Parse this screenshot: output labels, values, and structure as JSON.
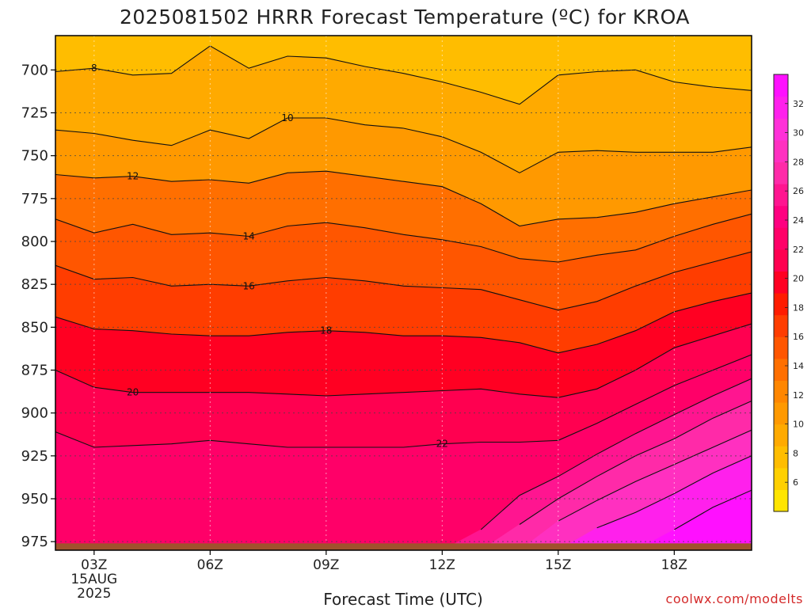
{
  "chart_data": {
    "type": "heatmap",
    "title": "2025081502 HRRR Forecast Temperature (ºC) for KROA",
    "xlabel": "Forecast Time (UTC)",
    "ylabel": "",
    "credit": "coolwx.com/modelts",
    "x_tick_labels": [
      "03Z",
      "06Z",
      "09Z",
      "12Z",
      "15Z",
      "18Z"
    ],
    "x_tick_hours": [
      3,
      6,
      9,
      12,
      15,
      18
    ],
    "date_label": {
      "line1": "15AUG",
      "line2": "2025"
    },
    "xlim_hours": [
      2,
      20
    ],
    "y_tick_labels": [
      "700",
      "725",
      "750",
      "775",
      "800",
      "825",
      "850",
      "875",
      "900",
      "925",
      "950",
      "975"
    ],
    "y_ticks": [
      700,
      725,
      750,
      775,
      800,
      825,
      850,
      875,
      900,
      925,
      950,
      975
    ],
    "ylim": [
      680,
      980
    ],
    "grid": true,
    "colorbar": {
      "ticks": [
        6,
        8,
        10,
        12,
        14,
        16,
        18,
        20,
        22,
        24,
        26,
        28,
        30,
        32
      ],
      "bounds": [
        4,
        34
      ],
      "colors": [
        "#ffe500",
        "#ffd000",
        "#ffbd00",
        "#ffaa00",
        "#ff9900",
        "#ff8600",
        "#ff6f00",
        "#ff5600",
        "#ff3d00",
        "#ff1c00",
        "#ff0022",
        "#ff0050",
        "#ff0068",
        "#ff0080",
        "#ff1590",
        "#ff2aa8",
        "#ff30c0",
        "#ff30d8",
        "#ff20ec",
        "#ff10ff"
      ]
    },
    "hours": [
      2,
      3,
      4,
      5,
      6,
      7,
      8,
      9,
      10,
      11,
      12,
      13,
      14,
      15,
      16,
      17,
      18,
      19,
      20
    ],
    "contours": [
      {
        "level": 8,
        "label": "8",
        "label_at_hour": 3,
        "pressures": [
          701,
          699,
          703,
          702,
          686,
          699,
          692,
          693,
          698,
          702,
          707,
          713,
          720,
          703,
          701,
          700,
          707,
          710,
          712
        ]
      },
      {
        "level": 10,
        "label": "10",
        "label_at_hour": 8,
        "pressures": [
          735,
          737,
          741,
          744,
          735,
          740,
          728,
          728,
          732,
          734,
          739,
          748,
          760,
          748,
          747,
          748,
          748,
          748,
          745
        ]
      },
      {
        "level": 12,
        "label": "12",
        "label_at_hour": 4,
        "pressures": [
          761,
          763,
          762,
          765,
          764,
          766,
          760,
          759,
          762,
          765,
          768,
          778,
          791,
          787,
          786,
          783,
          778,
          774,
          770
        ]
      },
      {
        "level": 14,
        "label": "14",
        "label_at_hour": 7,
        "pressures": [
          787,
          795,
          790,
          796,
          795,
          797,
          791,
          789,
          792,
          796,
          799,
          803,
          810,
          812,
          808,
          805,
          797,
          790,
          784
        ]
      },
      {
        "level": 16,
        "label": "16",
        "label_at_hour": 7,
        "pressures": [
          814,
          822,
          821,
          826,
          825,
          826,
          823,
          821,
          823,
          826,
          827,
          828,
          834,
          840,
          835,
          826,
          818,
          812,
          806
        ]
      },
      {
        "level": 18,
        "label": "18",
        "label_at_hour": 9,
        "pressures": [
          844,
          851,
          852,
          854,
          855,
          855,
          853,
          852,
          853,
          855,
          855,
          856,
          859,
          865,
          860,
          852,
          841,
          835,
          830
        ]
      },
      {
        "level": 20,
        "label": "20",
        "label_at_hour": 4,
        "pressures": [
          875,
          885,
          888,
          888,
          888,
          888,
          889,
          890,
          889,
          888,
          887,
          886,
          889,
          891,
          886,
          875,
          862,
          855,
          848
        ]
      },
      {
        "level": 22,
        "label": "22",
        "label_at_hour": 12,
        "pressures": [
          911,
          920,
          919,
          918,
          916,
          918,
          920,
          920,
          920,
          920,
          918,
          917,
          917,
          916,
          906,
          895,
          884,
          875,
          866
        ]
      },
      {
        "level": 24,
        "label": "",
        "label_at_hour": -1,
        "pressures": [
          null,
          null,
          null,
          null,
          null,
          null,
          null,
          null,
          null,
          null,
          null,
          968,
          948,
          937,
          924,
          912,
          901,
          890,
          880
        ]
      },
      {
        "level": 26,
        "label": "",
        "label_at_hour": -1,
        "pressures": [
          null,
          null,
          null,
          null,
          null,
          null,
          null,
          null,
          null,
          null,
          null,
          null,
          965,
          950,
          937,
          925,
          915,
          903,
          893
        ]
      },
      {
        "level": 28,
        "label": "",
        "label_at_hour": -1,
        "pressures": [
          null,
          null,
          null,
          null,
          null,
          null,
          null,
          null,
          null,
          null,
          null,
          null,
          null,
          963,
          951,
          940,
          930,
          920,
          910
        ]
      },
      {
        "level": 30,
        "label": "",
        "label_at_hour": -1,
        "pressures": [
          null,
          null,
          null,
          null,
          null,
          null,
          null,
          null,
          null,
          null,
          null,
          null,
          null,
          null,
          967,
          958,
          947,
          935,
          925
        ]
      },
      {
        "level": 32,
        "label": "",
        "label_at_hour": -1,
        "pressures": [
          null,
          null,
          null,
          null,
          null,
          null,
          null,
          null,
          null,
          null,
          null,
          null,
          null,
          null,
          null,
          null,
          968,
          955,
          945
        ]
      }
    ],
    "ground_pressure": 976,
    "ground_color": "#a0522d"
  }
}
